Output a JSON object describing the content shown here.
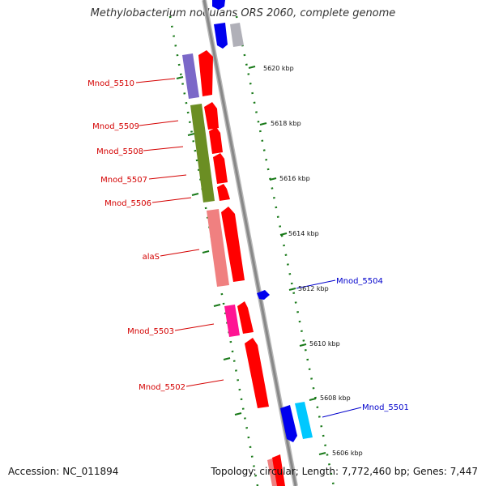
{
  "title": "Methylobacterium nodulans ORS 2060, complete genome",
  "footer": {
    "accession": "Accession: NC_011894",
    "summary": "Topology: circular; Length: 7,772,460 bp; Genes: 7,447"
  },
  "ticks": [
    "5620 kbp",
    "5618 kbp",
    "5616 kbp",
    "5614 kbp",
    "5612 kbp",
    "5610 kbp",
    "5608 kbp",
    "5606 kbp"
  ],
  "labels": [
    {
      "text": "Mnod_5510",
      "side": "left",
      "color": "#d40000"
    },
    {
      "text": "Mnod_5509",
      "side": "left",
      "color": "#d40000"
    },
    {
      "text": "Mnod_5508",
      "side": "left",
      "color": "#d40000"
    },
    {
      "text": "Mnod_5507",
      "side": "left",
      "color": "#d40000"
    },
    {
      "text": "Mnod_5506",
      "side": "left",
      "color": "#d40000"
    },
    {
      "text": "alaS",
      "side": "left",
      "color": "#d40000"
    },
    {
      "text": "Mnod_5503",
      "side": "left",
      "color": "#d40000"
    },
    {
      "text": "Mnod_5502",
      "side": "left",
      "color": "#d40000"
    },
    {
      "text": "Mnod_5504",
      "side": "right",
      "color": "#0000cc"
    },
    {
      "text": "Mnod_5501",
      "side": "right",
      "color": "#0000cc"
    }
  ],
  "colors": {
    "cds_forward": "#ff0000",
    "cds_reverse": "#0000ee",
    "backbone": "#888888",
    "tick": "#1a7a1a"
  }
}
